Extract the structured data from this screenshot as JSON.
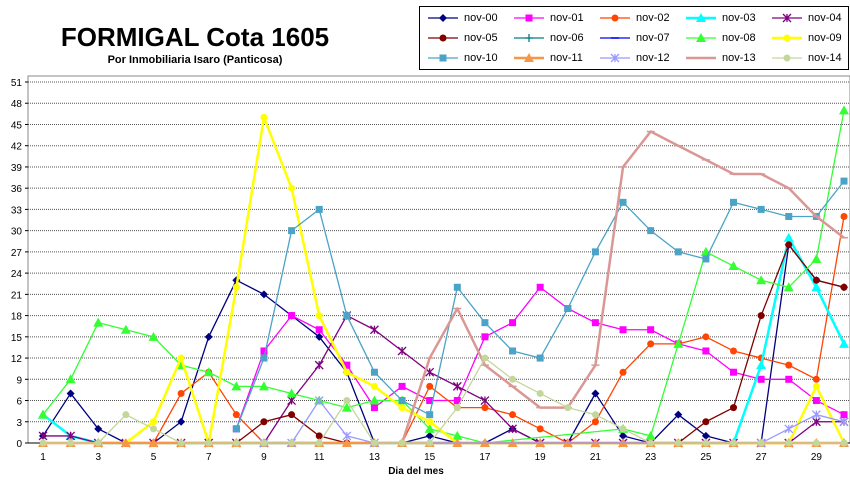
{
  "chart_data": {
    "type": "line",
    "title": "FORMIGAL Cota 1605",
    "subtitle": "Por Inmobiliaria  Isaro  (Panticosa)",
    "xlabel": "Dia del mes",
    "ylabel": "",
    "ylim": [
      0,
      51
    ],
    "xlim": [
      1,
      30
    ],
    "yticks": [
      0,
      3,
      6,
      9,
      12,
      15,
      18,
      21,
      24,
      27,
      30,
      33,
      36,
      39,
      42,
      45,
      48,
      51
    ],
    "xticks": [
      1,
      3,
      5,
      7,
      9,
      11,
      13,
      15,
      17,
      19,
      21,
      23,
      25,
      27,
      29
    ],
    "grid": true,
    "legend_position": "top-right",
    "series": [
      {
        "name": "nov-00",
        "color": "#000080",
        "marker": "diamond",
        "points": [
          [
            1,
            1
          ],
          [
            2,
            7
          ],
          [
            3,
            2
          ],
          [
            4,
            0
          ],
          [
            5,
            0
          ],
          [
            6,
            3
          ],
          [
            7,
            15
          ],
          [
            8,
            23
          ],
          [
            9,
            21
          ],
          [
            10,
            18
          ],
          [
            11,
            15
          ],
          [
            12,
            10
          ],
          [
            13,
            0
          ],
          [
            14,
            0
          ],
          [
            15,
            1
          ],
          [
            16,
            0
          ],
          [
            17,
            0
          ],
          [
            18,
            2
          ],
          [
            19,
            0
          ],
          [
            20,
            0
          ],
          [
            21,
            7
          ],
          [
            22,
            1
          ],
          [
            23,
            0
          ],
          [
            24,
            4
          ],
          [
            25,
            1
          ],
          [
            26,
            0
          ],
          [
            27,
            0
          ],
          [
            28,
            28
          ],
          [
            29,
            23
          ],
          [
            30,
            22
          ]
        ]
      },
      {
        "name": "nov-01",
        "color": "#ff00ff",
        "marker": "square",
        "points": [
          [
            8,
            2
          ],
          [
            9,
            13
          ],
          [
            10,
            18
          ],
          [
            11,
            16
          ],
          [
            12,
            11
          ],
          [
            13,
            5
          ],
          [
            14,
            8
          ],
          [
            15,
            6
          ],
          [
            16,
            6
          ],
          [
            17,
            15
          ],
          [
            18,
            17
          ],
          [
            19,
            22
          ],
          [
            20,
            19
          ],
          [
            21,
            17
          ],
          [
            22,
            16
          ],
          [
            23,
            16
          ],
          [
            24,
            14
          ],
          [
            25,
            13
          ],
          [
            26,
            10
          ],
          [
            27,
            9
          ],
          [
            28,
            9
          ],
          [
            29,
            6
          ],
          [
            30,
            4
          ]
        ]
      },
      {
        "name": "nov-02",
        "color": "#ff4500",
        "marker": "circle",
        "points": [
          [
            5,
            0
          ],
          [
            6,
            7
          ],
          [
            7,
            10
          ],
          [
            8,
            4
          ],
          [
            9,
            0
          ],
          [
            14,
            0
          ],
          [
            15,
            8
          ],
          [
            16,
            5
          ],
          [
            17,
            5
          ],
          [
            18,
            4
          ],
          [
            19,
            2
          ],
          [
            20,
            0
          ],
          [
            21,
            3
          ],
          [
            22,
            10
          ],
          [
            23,
            14
          ],
          [
            24,
            14
          ],
          [
            25,
            15
          ],
          [
            26,
            13
          ],
          [
            27,
            12
          ],
          [
            28,
            11
          ],
          [
            29,
            9
          ],
          [
            30,
            32
          ]
        ]
      },
      {
        "name": "nov-03",
        "color": "#00ffff",
        "marker": "triangle",
        "points": [
          [
            1,
            4
          ],
          [
            2,
            1
          ],
          [
            3,
            0
          ],
          [
            26,
            0
          ],
          [
            27,
            11
          ],
          [
            28,
            29
          ],
          [
            29,
            22
          ],
          [
            30,
            14
          ]
        ]
      },
      {
        "name": "nov-04",
        "color": "#800080",
        "marker": "star",
        "points": [
          [
            1,
            1
          ],
          [
            2,
            1
          ],
          [
            3,
            0
          ],
          [
            4,
            0
          ],
          [
            5,
            0
          ],
          [
            6,
            0
          ],
          [
            7,
            0
          ],
          [
            8,
            0
          ],
          [
            9,
            0
          ],
          [
            10,
            6
          ],
          [
            11,
            11
          ],
          [
            12,
            18
          ],
          [
            13,
            16
          ],
          [
            14,
            13
          ],
          [
            15,
            10
          ],
          [
            16,
            8
          ],
          [
            17,
            6
          ],
          [
            18,
            2
          ],
          [
            19,
            0
          ],
          [
            20,
            0
          ],
          [
            21,
            0
          ],
          [
            22,
            0
          ],
          [
            23,
            0
          ],
          [
            24,
            0
          ],
          [
            25,
            0
          ],
          [
            26,
            0
          ],
          [
            27,
            0
          ],
          [
            28,
            0
          ],
          [
            29,
            3
          ],
          [
            30,
            3
          ]
        ]
      },
      {
        "name": "nov-05",
        "color": "#800000",
        "marker": "circle",
        "points": [
          [
            8,
            0
          ],
          [
            9,
            3
          ],
          [
            10,
            4
          ],
          [
            11,
            1
          ],
          [
            12,
            0
          ],
          [
            23,
            0
          ],
          [
            24,
            0
          ],
          [
            25,
            3
          ],
          [
            26,
            5
          ],
          [
            27,
            18
          ],
          [
            28,
            28
          ],
          [
            29,
            23
          ],
          [
            30,
            22
          ]
        ]
      },
      {
        "name": "nov-06",
        "color": "#008080",
        "marker": "plus",
        "points": [
          [
            21,
            0
          ],
          [
            22,
            0
          ],
          [
            23,
            0
          ],
          [
            24,
            0
          ],
          [
            25,
            0
          ],
          [
            26,
            0
          ],
          [
            27,
            0
          ],
          [
            28,
            0
          ],
          [
            29,
            0
          ],
          [
            30,
            0
          ]
        ]
      },
      {
        "name": "nov-07",
        "color": "#0000ff",
        "marker": "dash",
        "points": [
          [
            1,
            0
          ],
          [
            2,
            0
          ],
          [
            3,
            0
          ],
          [
            4,
            0
          ],
          [
            5,
            0
          ],
          [
            6,
            0
          ],
          [
            7,
            0
          ],
          [
            8,
            0
          ],
          [
            9,
            0
          ],
          [
            10,
            0
          ]
        ]
      },
      {
        "name": "nov-08",
        "color": "#33ff33",
        "marker": "triangle",
        "points": [
          [
            1,
            4
          ],
          [
            2,
            9
          ],
          [
            3,
            17
          ],
          [
            4,
            16
          ],
          [
            5,
            15
          ],
          [
            6,
            11
          ],
          [
            7,
            10
          ],
          [
            8,
            8
          ],
          [
            9,
            8
          ],
          [
            10,
            7
          ],
          [
            11,
            6
          ],
          [
            12,
            5
          ],
          [
            13,
            6
          ],
          [
            14,
            6
          ],
          [
            15,
            2
          ],
          [
            16,
            1
          ],
          [
            17,
            0
          ],
          [
            22,
            2
          ],
          [
            23,
            1
          ],
          [
            24,
            14
          ],
          [
            25,
            27
          ],
          [
            26,
            25
          ],
          [
            27,
            23
          ],
          [
            28,
            22
          ],
          [
            29,
            26
          ],
          [
            30,
            47
          ]
        ]
      },
      {
        "name": "nov-09",
        "color": "#ffff00",
        "marker": "circle",
        "points": [
          [
            4,
            0
          ],
          [
            5,
            3
          ],
          [
            6,
            12
          ],
          [
            7,
            0
          ],
          [
            8,
            22
          ],
          [
            9,
            46
          ],
          [
            10,
            36
          ],
          [
            11,
            18
          ],
          [
            12,
            10
          ],
          [
            13,
            8
          ],
          [
            14,
            5
          ],
          [
            15,
            3
          ],
          [
            16,
            0
          ],
          [
            27,
            0
          ],
          [
            28,
            0
          ],
          [
            29,
            8
          ],
          [
            30,
            0
          ]
        ]
      },
      {
        "name": "nov-10",
        "color": "#4ba3c7",
        "marker": "square",
        "points": [
          [
            8,
            2
          ],
          [
            9,
            12
          ],
          [
            10,
            30
          ],
          [
            11,
            33
          ],
          [
            12,
            18
          ],
          [
            13,
            10
          ],
          [
            14,
            6
          ],
          [
            15,
            4
          ],
          [
            16,
            22
          ],
          [
            17,
            17
          ],
          [
            18,
            13
          ],
          [
            19,
            12
          ],
          [
            20,
            19
          ],
          [
            21,
            27
          ],
          [
            22,
            34
          ],
          [
            23,
            30
          ],
          [
            24,
            27
          ],
          [
            25,
            26
          ],
          [
            26,
            34
          ],
          [
            27,
            33
          ],
          [
            28,
            32
          ],
          [
            29,
            32
          ],
          [
            30,
            37
          ]
        ]
      },
      {
        "name": "nov-11",
        "color": "#f79646",
        "marker": "triangle",
        "points": [
          [
            1,
            0
          ],
          [
            2,
            0
          ],
          [
            3,
            0
          ],
          [
            4,
            0
          ],
          [
            5,
            0
          ],
          [
            6,
            0
          ],
          [
            7,
            0
          ],
          [
            8,
            0
          ],
          [
            9,
            0
          ],
          [
            10,
            0
          ],
          [
            11,
            0
          ],
          [
            12,
            0
          ],
          [
            13,
            0
          ],
          [
            14,
            0
          ],
          [
            15,
            0
          ],
          [
            16,
            0
          ],
          [
            17,
            0
          ],
          [
            18,
            0
          ],
          [
            19,
            0
          ],
          [
            20,
            0
          ],
          [
            21,
            0
          ],
          [
            22,
            0
          ],
          [
            23,
            0
          ],
          [
            24,
            0
          ],
          [
            25,
            0
          ],
          [
            26,
            0
          ],
          [
            27,
            0
          ],
          [
            28,
            0
          ],
          [
            29,
            0
          ],
          [
            30,
            0
          ]
        ]
      },
      {
        "name": "nov-12",
        "color": "#9999ff",
        "marker": "star",
        "points": [
          [
            9,
            0
          ],
          [
            10,
            0
          ],
          [
            11,
            6
          ],
          [
            12,
            1
          ],
          [
            13,
            0
          ],
          [
            27,
            0
          ],
          [
            28,
            2
          ],
          [
            29,
            4
          ],
          [
            30,
            3
          ]
        ]
      },
      {
        "name": "nov-13",
        "color": "#d99795",
        "marker": "dash",
        "points": [
          [
            14,
            0
          ],
          [
            15,
            12
          ],
          [
            16,
            19
          ],
          [
            17,
            11
          ],
          [
            18,
            8
          ],
          [
            19,
            5
          ],
          [
            20,
            5
          ],
          [
            21,
            11
          ],
          [
            22,
            39
          ],
          [
            23,
            44
          ],
          [
            24,
            42
          ],
          [
            25,
            40
          ],
          [
            26,
            38
          ],
          [
            27,
            38
          ],
          [
            28,
            36
          ],
          [
            29,
            32
          ],
          [
            30,
            29
          ]
        ]
      },
      {
        "name": "nov-14",
        "color": "#c4d79b",
        "marker": "circle",
        "points": [
          [
            1,
            0
          ],
          [
            2,
            0
          ],
          [
            3,
            0
          ],
          [
            4,
            4
          ],
          [
            5,
            2
          ],
          [
            6,
            0
          ],
          [
            7,
            0
          ],
          [
            8,
            0
          ],
          [
            9,
            0
          ],
          [
            10,
            0
          ],
          [
            11,
            0
          ],
          [
            12,
            6
          ],
          [
            13,
            0
          ],
          [
            14,
            0
          ],
          [
            15,
            0
          ],
          [
            16,
            5
          ],
          [
            17,
            12
          ],
          [
            18,
            9
          ],
          [
            19,
            7
          ],
          [
            20,
            5
          ],
          [
            21,
            4
          ],
          [
            22,
            2
          ],
          [
            23,
            0
          ],
          [
            24,
            0
          ],
          [
            25,
            0
          ],
          [
            26,
            0
          ],
          [
            27,
            0
          ],
          [
            28,
            0
          ],
          [
            29,
            0
          ],
          [
            30,
            0
          ]
        ]
      }
    ]
  }
}
